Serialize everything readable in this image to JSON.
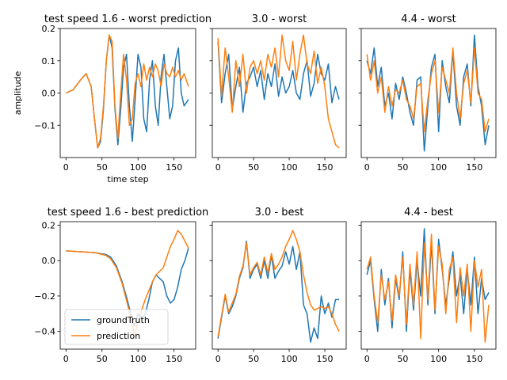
{
  "colors": {
    "groundTruth": "#1f77b4",
    "prediction": "#ff7f0e"
  },
  "legend": {
    "placement": "lower-left",
    "subplot": 3,
    "entries": [
      "groundTruth",
      "prediction"
    ]
  },
  "chart_data": [
    {
      "type": "line",
      "title": "test speed 1.6 - worst prediction",
      "xlabel": "time step",
      "ylabel": "amplitude",
      "xlim": [
        -8,
        180
      ],
      "ylim": [
        -0.2,
        0.2
      ],
      "xticks": [
        0,
        50,
        100,
        150
      ],
      "yticks": [
        -0.1,
        0.0,
        0.1,
        0.2
      ],
      "ytick_labels": [
        "−0.1",
        "0.0",
        "0.1",
        "0.2"
      ],
      "show_ytick_labels": true,
      "series": [
        {
          "name": "groundTruth",
          "x": [
            0,
            10,
            20,
            28,
            35,
            40,
            44,
            48,
            52,
            56,
            60,
            64,
            68,
            72,
            76,
            80,
            84,
            88,
            92,
            96,
            100,
            104,
            108,
            112,
            116,
            120,
            124,
            128,
            132,
            136,
            140,
            144,
            148,
            152,
            156,
            160,
            164,
            170
          ],
          "y": [
            0.0,
            0.01,
            0.04,
            0.06,
            0.02,
            -0.09,
            -0.17,
            -0.15,
            -0.05,
            0.1,
            0.18,
            0.14,
            -0.05,
            -0.16,
            -0.05,
            0.08,
            0.12,
            -0.04,
            -0.15,
            -0.02,
            0.12,
            0.08,
            -0.08,
            -0.12,
            0.04,
            0.1,
            -0.04,
            -0.1,
            0.05,
            0.12,
            0.02,
            -0.08,
            -0.04,
            0.1,
            0.14,
            0.0,
            -0.04,
            -0.02
          ]
        },
        {
          "name": "prediction",
          "x": [
            0,
            10,
            20,
            28,
            35,
            40,
            44,
            48,
            52,
            56,
            60,
            64,
            68,
            72,
            76,
            80,
            84,
            88,
            92,
            96,
            100,
            104,
            108,
            112,
            116,
            120,
            124,
            128,
            132,
            136,
            140,
            144,
            148,
            152,
            156,
            160,
            164,
            170
          ],
          "y": [
            0.0,
            0.01,
            0.04,
            0.06,
            0.02,
            -0.09,
            -0.17,
            -0.14,
            -0.04,
            0.1,
            0.18,
            0.16,
            -0.04,
            -0.14,
            0.0,
            0.12,
            0.04,
            -0.1,
            -0.08,
            0.03,
            0.06,
            0.02,
            0.09,
            0.04,
            0.08,
            0.05,
            0.09,
            0.07,
            0.02,
            0.09,
            0.06,
            0.05,
            0.08,
            0.05,
            0.07,
            0.04,
            0.06,
            0.02
          ]
        }
      ]
    },
    {
      "type": "line",
      "title": "3.0 - worst",
      "xlabel": "",
      "ylabel": "",
      "xlim": [
        -8,
        180
      ],
      "ylim": [
        -0.2,
        0.2
      ],
      "xticks": [
        0,
        50,
        100,
        150
      ],
      "yticks": [
        -0.1,
        0.0,
        0.1,
        0.2
      ],
      "ytick_labels": [],
      "show_ytick_labels": false,
      "series": [
        {
          "name": "groundTruth",
          "x": [
            0,
            5,
            10,
            15,
            20,
            25,
            30,
            35,
            40,
            45,
            50,
            55,
            60,
            65,
            70,
            75,
            80,
            85,
            90,
            95,
            100,
            105,
            110,
            115,
            120,
            125,
            130,
            135,
            140,
            145,
            150,
            155,
            160,
            165,
            170
          ],
          "y": [
            0.16,
            -0.03,
            0.06,
            0.12,
            -0.05,
            0.02,
            0.08,
            -0.06,
            0.03,
            0.05,
            0.08,
            0.02,
            0.07,
            -0.02,
            0.06,
            0.02,
            0.09,
            -0.01,
            0.05,
            0.0,
            0.02,
            0.07,
            0.0,
            -0.02,
            0.06,
            0.1,
            -0.01,
            0.03,
            0.12,
            0.06,
            0.04,
            0.09,
            -0.03,
            0.02,
            -0.02
          ]
        },
        {
          "name": "prediction",
          "x": [
            0,
            5,
            10,
            15,
            20,
            25,
            30,
            35,
            40,
            45,
            50,
            55,
            60,
            65,
            70,
            75,
            80,
            85,
            90,
            95,
            100,
            105,
            110,
            115,
            120,
            125,
            130,
            135,
            140,
            145,
            150,
            155,
            160,
            165,
            170
          ],
          "y": [
            0.17,
            -0.01,
            0.14,
            0.05,
            -0.06,
            0.1,
            0.02,
            0.12,
            0.0,
            0.08,
            0.1,
            0.06,
            0.1,
            0.04,
            0.12,
            0.08,
            0.14,
            0.05,
            0.18,
            0.1,
            0.07,
            0.16,
            0.04,
            0.12,
            0.18,
            0.09,
            0.06,
            0.13,
            0.03,
            0.08,
            0.02,
            -0.08,
            -0.12,
            -0.16,
            -0.17
          ]
        }
      ]
    },
    {
      "type": "line",
      "title": "4.4 - worst",
      "xlabel": "",
      "ylabel": "",
      "xlim": [
        -8,
        180
      ],
      "ylim": [
        -0.2,
        0.2
      ],
      "xticks": [
        0,
        50,
        100,
        150
      ],
      "yticks": [
        -0.1,
        0.0,
        0.1,
        0.2
      ],
      "ytick_labels": [],
      "show_ytick_labels": false,
      "series": [
        {
          "name": "groundTruth",
          "x": [
            0,
            5,
            10,
            15,
            20,
            25,
            30,
            35,
            40,
            45,
            50,
            55,
            60,
            65,
            70,
            75,
            80,
            85,
            90,
            95,
            100,
            105,
            110,
            115,
            120,
            125,
            130,
            135,
            140,
            145,
            150,
            155,
            160,
            165,
            170
          ],
          "y": [
            0.1,
            0.06,
            0.14,
            0.02,
            0.08,
            -0.04,
            0.0,
            -0.08,
            0.03,
            -0.02,
            0.05,
            0.0,
            -0.06,
            -0.1,
            0.04,
            0.05,
            -0.18,
            -0.04,
            0.08,
            0.12,
            -0.12,
            0.1,
            0.02,
            -0.03,
            0.13,
            -0.04,
            -0.1,
            0.05,
            0.09,
            -0.04,
            0.18,
            0.02,
            -0.04,
            -0.16,
            -0.1
          ]
        },
        {
          "name": "prediction",
          "x": [
            0,
            5,
            10,
            15,
            20,
            25,
            30,
            35,
            40,
            45,
            50,
            55,
            60,
            65,
            70,
            75,
            80,
            85,
            90,
            95,
            100,
            105,
            110,
            115,
            120,
            125,
            130,
            135,
            140,
            145,
            150,
            155,
            160,
            165,
            170
          ],
          "y": [
            0.12,
            0.04,
            0.1,
            0.0,
            0.05,
            -0.06,
            0.02,
            -0.04,
            0.01,
            0.0,
            0.04,
            -0.02,
            -0.04,
            -0.08,
            0.02,
            0.03,
            -0.12,
            -0.02,
            0.06,
            0.1,
            -0.06,
            0.08,
            0.04,
            0.0,
            0.14,
            0.0,
            -0.08,
            0.03,
            0.07,
            -0.03,
            0.14,
            0.0,
            -0.02,
            -0.12,
            -0.08
          ]
        }
      ]
    },
    {
      "type": "line",
      "title": "test speed 1.6 - best prediction",
      "xlabel": "",
      "ylabel": "",
      "xlim": [
        -8,
        180
      ],
      "ylim": [
        -0.5,
        0.22
      ],
      "xticks": [
        0,
        50,
        100,
        150
      ],
      "yticks": [
        -0.4,
        -0.2,
        0.0,
        0.2
      ],
      "ytick_labels": [
        "−0.4",
        "−0.2",
        "0.0",
        "0.2"
      ],
      "show_ytick_labels": true,
      "series": [
        {
          "name": "groundTruth",
          "x": [
            0,
            20,
            40,
            55,
            62,
            70,
            78,
            85,
            90,
            95,
            100,
            105,
            110,
            115,
            120,
            125,
            130,
            135,
            140,
            145,
            150,
            155,
            160,
            165,
            170
          ],
          "y": [
            0.055,
            0.05,
            0.045,
            0.035,
            0.02,
            -0.03,
            -0.12,
            -0.22,
            -0.3,
            -0.37,
            -0.3,
            -0.33,
            -0.3,
            -0.22,
            -0.12,
            -0.08,
            -0.1,
            -0.12,
            -0.2,
            -0.24,
            -0.22,
            -0.15,
            -0.05,
            0.0,
            0.07
          ]
        },
        {
          "name": "prediction",
          "x": [
            0,
            20,
            40,
            55,
            62,
            70,
            78,
            85,
            90,
            95,
            100,
            105,
            110,
            115,
            120,
            125,
            130,
            135,
            140,
            145,
            150,
            155,
            160,
            165,
            170
          ],
          "y": [
            0.055,
            0.05,
            0.045,
            0.03,
            0.01,
            -0.04,
            -0.13,
            -0.24,
            -0.32,
            -0.42,
            -0.35,
            -0.28,
            -0.22,
            -0.17,
            -0.12,
            -0.08,
            -0.06,
            -0.04,
            0.02,
            0.08,
            0.12,
            0.17,
            0.15,
            0.11,
            0.07
          ]
        }
      ]
    },
    {
      "type": "line",
      "title": "3.0 - best",
      "xlabel": "",
      "ylabel": "",
      "xlim": [
        -8,
        180
      ],
      "ylim": [
        -0.5,
        0.22
      ],
      "xticks": [
        0,
        50,
        100,
        150
      ],
      "yticks": [
        -0.4,
        -0.2,
        0.0,
        0.2
      ],
      "ytick_labels": [],
      "show_ytick_labels": false,
      "series": [
        {
          "name": "groundTruth",
          "x": [
            0,
            10,
            15,
            20,
            25,
            30,
            35,
            40,
            45,
            50,
            55,
            60,
            65,
            70,
            75,
            80,
            85,
            90,
            95,
            100,
            105,
            110,
            115,
            120,
            125,
            130,
            135,
            140,
            145,
            150,
            155,
            160,
            165,
            170
          ],
          "y": [
            -0.44,
            -0.2,
            -0.3,
            -0.26,
            -0.2,
            -0.1,
            -0.04,
            0.11,
            -0.1,
            -0.05,
            -0.02,
            -0.1,
            0.0,
            -0.1,
            0.03,
            -0.1,
            -0.06,
            -0.03,
            0.05,
            -0.02,
            0.08,
            -0.05,
            0.05,
            -0.25,
            -0.3,
            -0.46,
            -0.38,
            -0.44,
            -0.2,
            -0.3,
            -0.24,
            -0.32,
            -0.22,
            -0.22
          ]
        },
        {
          "name": "prediction",
          "x": [
            0,
            10,
            15,
            20,
            25,
            30,
            35,
            40,
            45,
            50,
            55,
            60,
            65,
            70,
            75,
            80,
            85,
            90,
            95,
            100,
            105,
            110,
            115,
            120,
            125,
            130,
            135,
            140,
            145,
            150,
            155,
            160,
            165,
            170
          ],
          "y": [
            -0.43,
            -0.19,
            -0.29,
            -0.24,
            -0.19,
            -0.09,
            -0.03,
            0.1,
            -0.08,
            -0.04,
            -0.01,
            -0.08,
            0.02,
            -0.07,
            0.04,
            -0.05,
            -0.02,
            0.02,
            0.08,
            0.12,
            0.17,
            0.12,
            0.05,
            -0.08,
            -0.18,
            -0.25,
            -0.28,
            -0.27,
            -0.26,
            -0.27,
            -0.26,
            -0.3,
            -0.36,
            -0.4
          ]
        }
      ]
    },
    {
      "type": "line",
      "title": "4.4 - best",
      "xlabel": "",
      "ylabel": "",
      "xlim": [
        -8,
        180
      ],
      "ylim": [
        -0.5,
        0.22
      ],
      "xticks": [
        0,
        50,
        100,
        150
      ],
      "yticks": [
        -0.4,
        -0.2,
        0.0,
        0.2
      ],
      "ytick_labels": [],
      "show_ytick_labels": false,
      "series": [
        {
          "name": "groundTruth",
          "x": [
            0,
            5,
            10,
            15,
            20,
            25,
            30,
            35,
            40,
            45,
            50,
            55,
            60,
            65,
            70,
            75,
            80,
            85,
            90,
            95,
            100,
            105,
            110,
            115,
            120,
            125,
            130,
            135,
            140,
            145,
            150,
            155,
            160,
            165,
            170
          ],
          "y": [
            -0.08,
            0.0,
            -0.22,
            -0.4,
            -0.05,
            -0.25,
            -0.1,
            -0.38,
            -0.1,
            -0.22,
            0.05,
            -0.4,
            -0.05,
            -0.28,
            0.0,
            -0.2,
            0.18,
            -0.25,
            0.1,
            -0.3,
            0.12,
            -0.05,
            -0.25,
            -0.1,
            0.05,
            -0.2,
            -0.08,
            -0.3,
            -0.05,
            -0.25,
            0.02,
            -0.3,
            -0.1,
            -0.22,
            -0.18
          ]
        },
        {
          "name": "prediction",
          "x": [
            0,
            5,
            10,
            15,
            20,
            25,
            30,
            35,
            40,
            45,
            50,
            55,
            60,
            65,
            70,
            75,
            80,
            85,
            90,
            95,
            100,
            105,
            110,
            115,
            120,
            125,
            130,
            135,
            140,
            145,
            150,
            155,
            160,
            165,
            170
          ],
          "y": [
            -0.05,
            0.02,
            -0.2,
            -0.35,
            -0.08,
            -0.22,
            -0.12,
            -0.34,
            -0.08,
            -0.2,
            0.02,
            -0.36,
            -0.02,
            -0.25,
            0.05,
            -0.44,
            0.1,
            -0.22,
            0.15,
            -0.28,
            0.08,
            -0.02,
            -0.3,
            -0.05,
            0.02,
            -0.35,
            -0.04,
            -0.2,
            -0.02,
            -0.4,
            0.0,
            -0.15,
            -0.05,
            -0.46,
            -0.25
          ]
        }
      ]
    }
  ]
}
